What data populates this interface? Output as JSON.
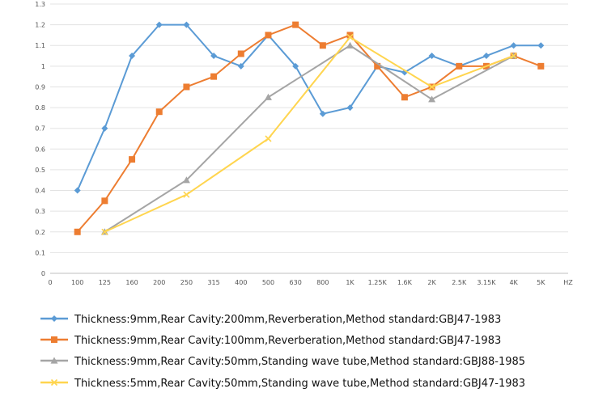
{
  "chart_data": {
    "type": "line",
    "categories": [
      "0",
      "100",
      "125",
      "160",
      "200",
      "250",
      "315",
      "400",
      "500",
      "630",
      "800",
      "1K",
      "1.25K",
      "1.6K",
      "2K",
      "2.5K",
      "3.15K",
      "4K",
      "5K",
      "HZ"
    ],
    "ylim": [
      0,
      1.3
    ],
    "yticks": [
      "0",
      "0.1",
      "0.2",
      "0.3",
      "0.4",
      "0.5",
      "0.6",
      "0.7",
      "0.8",
      "0.9",
      "1",
      "1.1",
      "1.2",
      "1.3"
    ],
    "grid": "horizontal",
    "legend_position": "bottom",
    "series": [
      {
        "name": "Thickness:9mm,Rear Cavity:200mm,Reverberation,Method standard:GBJ47-1983",
        "color": "#5b9bd5",
        "marker": "diamond",
        "x": [
          "100",
          "125",
          "160",
          "200",
          "250",
          "315",
          "400",
          "500",
          "630",
          "800",
          "1K",
          "1.25K",
          "1.6K",
          "2K",
          "2.5K",
          "3.15K",
          "4K",
          "5K"
        ],
        "values": [
          0.4,
          0.7,
          1.05,
          1.2,
          1.2,
          1.05,
          1.0,
          1.15,
          1.0,
          0.77,
          0.8,
          1.0,
          0.97,
          1.05,
          1.0,
          1.05,
          1.1,
          1.1
        ]
      },
      {
        "name": "Thickness:9mm,Rear Cavity:100mm,Reverberation,Method standard:GBJ47-1983",
        "color": "#ed7d31",
        "marker": "square",
        "x": [
          "100",
          "125",
          "160",
          "200",
          "250",
          "315",
          "400",
          "500",
          "630",
          "800",
          "1K",
          "1.25K",
          "1.6K",
          "2K",
          "2.5K",
          "3.15K",
          "4K",
          "5K"
        ],
        "values": [
          0.2,
          0.35,
          0.55,
          0.78,
          0.9,
          0.95,
          1.06,
          1.15,
          1.2,
          1.1,
          1.15,
          1.0,
          0.85,
          0.9,
          1.0,
          1.0,
          1.05,
          1.0
        ]
      },
      {
        "name": "Thickness:9mm,Rear Cavity:50mm,Standing wave tube,Method standard:GBJ88-1985",
        "color": "#a5a5a5",
        "marker": "triangle",
        "x": [
          "125",
          "250",
          "500",
          "1K",
          "2K",
          "4K"
        ],
        "values": [
          0.2,
          0.45,
          0.85,
          1.1,
          0.84,
          1.05
        ]
      },
      {
        "name": "Thickness:5mm,Rear Cavity:50mm,Standing wave tube,Method standard:GBJ47-1983",
        "color": "#ffd54f",
        "marker": "x",
        "x": [
          "125",
          "250",
          "500",
          "1K",
          "2K",
          "4K"
        ],
        "values": [
          0.2,
          0.38,
          0.65,
          1.14,
          0.9,
          1.05
        ]
      }
    ]
  }
}
